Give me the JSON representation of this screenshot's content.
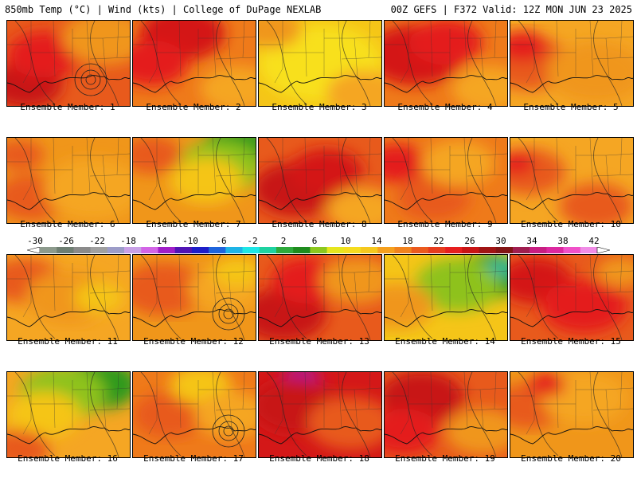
{
  "header": {
    "left": "850mb Temp (°C) | Wind (kts) | College of DuPage NEXLAB",
    "right": "00Z GEFS | F372 Valid: 12Z MON JUN 23 2025"
  },
  "members": [
    {
      "label": "Ensemble Member: 1",
      "base": "#e85a1c",
      "blobs": [
        [
          "#c81414",
          0.15,
          0.75,
          0.3
        ],
        [
          "#e41a1a",
          0.3,
          0.4,
          0.3
        ],
        [
          "#f0961a",
          0.8,
          0.2,
          0.35
        ]
      ],
      "rings": true
    },
    {
      "label": "Ensemble Member: 2",
      "base": "#ef7a1a",
      "blobs": [
        [
          "#d41818",
          0.4,
          0.15,
          0.35
        ],
        [
          "#e41a1a",
          0.15,
          0.5,
          0.3
        ],
        [
          "#f5a623",
          0.85,
          0.8,
          0.3
        ]
      ],
      "rings": false
    },
    {
      "label": "Ensemble Member: 3",
      "base": "#f5c518",
      "blobs": [
        [
          "#f8e01c",
          0.5,
          0.5,
          0.5
        ],
        [
          "#f0961a",
          0.1,
          0.1,
          0.25
        ],
        [
          "#f5a623",
          0.85,
          0.85,
          0.3
        ]
      ],
      "rings": false
    },
    {
      "label": "Ensemble Member: 4",
      "base": "#ef7a1a",
      "blobs": [
        [
          "#d41818",
          0.25,
          0.4,
          0.4
        ],
        [
          "#e41a1a",
          0.5,
          0.25,
          0.3
        ],
        [
          "#f5a623",
          0.85,
          0.8,
          0.3
        ]
      ],
      "rings": false
    },
    {
      "label": "Ensemble Member: 5",
      "base": "#f5a623",
      "blobs": [
        [
          "#e85a1c",
          0.15,
          0.5,
          0.35
        ],
        [
          "#e41a1a",
          0.1,
          0.3,
          0.2
        ],
        [
          "#f0961a",
          0.7,
          0.6,
          0.4
        ]
      ],
      "rings": false
    },
    {
      "label": "Ensemble Member: 6",
      "base": "#f0961a",
      "blobs": [
        [
          "#e85a1c",
          0.2,
          0.7,
          0.3
        ],
        [
          "#f5a623",
          0.7,
          0.6,
          0.4
        ],
        [
          "#e85a1c",
          0.1,
          0.2,
          0.2
        ]
      ],
      "rings": false
    },
    {
      "label": "Ensemble Member: 7",
      "base": "#f0961a",
      "blobs": [
        [
          "#2e9a1e",
          0.85,
          0.1,
          0.28
        ],
        [
          "#8ec21e",
          0.7,
          0.35,
          0.35
        ],
        [
          "#e85a1c",
          0.15,
          0.2,
          0.25
        ],
        [
          "#f5c518",
          0.6,
          0.5,
          0.3
        ]
      ],
      "rings": false
    },
    {
      "label": "Ensemble Member: 8",
      "base": "#e85a1c",
      "blobs": [
        [
          "#c81414",
          0.3,
          0.6,
          0.35
        ],
        [
          "#d41818",
          0.55,
          0.4,
          0.3
        ],
        [
          "#f5a623",
          0.85,
          0.85,
          0.3
        ]
      ],
      "rings": false
    },
    {
      "label": "Ensemble Member: 9",
      "base": "#ef7a1a",
      "blobs": [
        [
          "#e41a1a",
          0.1,
          0.3,
          0.25
        ],
        [
          "#e85a1c",
          0.4,
          0.7,
          0.3
        ],
        [
          "#f5a623",
          0.6,
          0.3,
          0.3
        ]
      ],
      "rings": false
    },
    {
      "label": "Ensemble Member: 10",
      "base": "#f5a623",
      "blobs": [
        [
          "#e85a1c",
          0.15,
          0.4,
          0.3
        ],
        [
          "#e41a1a",
          0.05,
          0.3,
          0.15
        ],
        [
          "#e85a1c",
          0.7,
          0.8,
          0.3
        ]
      ],
      "rings": false
    },
    {
      "label": "Ensemble Member: 11",
      "base": "#f5a623",
      "blobs": [
        [
          "#e85a1c",
          0.15,
          0.3,
          0.3
        ],
        [
          "#f0961a",
          0.5,
          0.5,
          0.35
        ],
        [
          "#f5c518",
          0.75,
          0.5,
          0.2
        ]
      ],
      "rings": false
    },
    {
      "label": "Ensemble Member: 12",
      "base": "#f0961a",
      "blobs": [
        [
          "#e85a1c",
          0.25,
          0.4,
          0.35
        ],
        [
          "#f5a623",
          0.75,
          0.4,
          0.3
        ],
        [
          "#f5c518",
          0.85,
          0.2,
          0.2
        ]
      ],
      "rings": true
    },
    {
      "label": "Ensemble Member: 13",
      "base": "#e85a1c",
      "blobs": [
        [
          "#c81414",
          0.2,
          0.7,
          0.35
        ],
        [
          "#e41a1a",
          0.4,
          0.3,
          0.3
        ],
        [
          "#f0961a",
          0.8,
          0.3,
          0.3
        ]
      ],
      "rings": false
    },
    {
      "label": "Ensemble Member: 14",
      "base": "#f5c518",
      "blobs": [
        [
          "#2e9a1e",
          0.85,
          0.25,
          0.3
        ],
        [
          "#8ec21e",
          0.6,
          0.35,
          0.35
        ],
        [
          "#f0961a",
          0.1,
          0.6,
          0.3
        ],
        [
          "#30b89a",
          0.95,
          0.15,
          0.12
        ]
      ],
      "rings": false
    },
    {
      "label": "Ensemble Member: 15",
      "base": "#e85a1c",
      "blobs": [
        [
          "#d41818",
          0.2,
          0.3,
          0.3
        ],
        [
          "#e41a1a",
          0.6,
          0.6,
          0.35
        ],
        [
          "#f0961a",
          0.9,
          0.2,
          0.2
        ]
      ],
      "rings": false
    },
    {
      "label": "Ensemble Member: 16",
      "base": "#f5a623",
      "blobs": [
        [
          "#2e9a1e",
          0.75,
          0.15,
          0.32
        ],
        [
          "#8ec21e",
          0.45,
          0.25,
          0.35
        ],
        [
          "#f5c518",
          0.3,
          0.5,
          0.3
        ],
        [
          "#e85a1c",
          0.1,
          0.9,
          0.25
        ]
      ],
      "rings": false
    },
    {
      "label": "Ensemble Member: 17",
      "base": "#ef7a1a",
      "blobs": [
        [
          "#e85a1c",
          0.3,
          0.5,
          0.3
        ],
        [
          "#f5c518",
          0.55,
          0.15,
          0.25
        ],
        [
          "#f5a623",
          0.8,
          0.5,
          0.3
        ]
      ],
      "rings": true
    },
    {
      "label": "Ensemble Member: 18",
      "base": "#d41818",
      "blobs": [
        [
          "#b4148c",
          0.35,
          0.05,
          0.15
        ],
        [
          "#c81414",
          0.3,
          0.4,
          0.35
        ],
        [
          "#e85a1c",
          0.75,
          0.6,
          0.35
        ]
      ],
      "rings": false
    },
    {
      "label": "Ensemble Member: 19",
      "base": "#e85a1c",
      "blobs": [
        [
          "#c81414",
          0.3,
          0.3,
          0.35
        ],
        [
          "#e41a1a",
          0.15,
          0.7,
          0.3
        ],
        [
          "#f0961a",
          0.8,
          0.7,
          0.3
        ]
      ],
      "rings": false
    },
    {
      "label": "Ensemble Member: 20",
      "base": "#f0961a",
      "blobs": [
        [
          "#e85a1c",
          0.15,
          0.4,
          0.3
        ],
        [
          "#f5a623",
          0.6,
          0.3,
          0.35
        ],
        [
          "#e41a1a",
          0.3,
          0.15,
          0.15
        ]
      ],
      "rings": false
    }
  ],
  "scale": {
    "labels": [
      "-30",
      "-26",
      "-22",
      "-18",
      "-14",
      "-10",
      "-6",
      "-2",
      "2",
      "6",
      "10",
      "14",
      "18",
      "22",
      "26",
      "30",
      "34",
      "38",
      "42"
    ],
    "colors": [
      "#8c9a8c",
      "#6e7e72",
      "#8a8a8a",
      "#a0a0a0",
      "#9c9cc8",
      "#c8a0e6",
      "#d264e6",
      "#a01ec8",
      "#5014b4",
      "#1e1ec8",
      "#1e64dc",
      "#1eb4e6",
      "#1ee6e6",
      "#1ed2a0",
      "#2eaa3c",
      "#1e8c1e",
      "#8cc81e",
      "#e6e61e",
      "#f5dc1e",
      "#f5c81e",
      "#f5a01e",
      "#f0821e",
      "#eb5a1e",
      "#e63c1e",
      "#e61e1e",
      "#c81414",
      "#a01414",
      "#821414",
      "#a01e50",
      "#c81e82",
      "#dc28a0",
      "#f050c8",
      "#f08ce6"
    ]
  }
}
